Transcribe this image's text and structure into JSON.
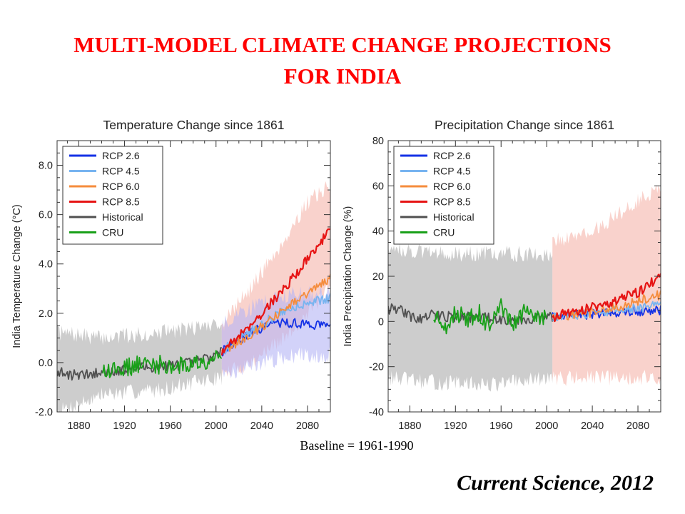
{
  "slide": {
    "title_line1": "MULTI-MODEL CLIMATE CHANGE PROJECTIONS",
    "title_line2": "FOR INDIA",
    "baseline_note": "Baseline = 1961-1990",
    "citation": "Current Science, 2012"
  },
  "colors": {
    "title": "#ff0000",
    "rcp26": "#1432e6",
    "rcp45": "#78b4f0",
    "rcp60": "#f58c3c",
    "rcp85": "#e61414",
    "historical": "#505050",
    "cru": "#19a019",
    "hist_band": "#c8c8c8",
    "rcp85_band": "#f5b4aa",
    "rcp26_band": "#b4b4f5"
  },
  "chart_data": [
    {
      "type": "line",
      "title": "Temperature Change since 1861",
      "xlabel": "",
      "ylabel": "India Temperature Change (°C)",
      "xlim": [
        1861,
        2100
      ],
      "ylim": [
        -2.0,
        9.0
      ],
      "xticks": [
        1880,
        1920,
        1960,
        2000,
        2040,
        2080
      ],
      "xtick_labels": [
        "1880",
        "1920",
        "1960",
        "2000",
        "2040",
        "2080"
      ],
      "yticks": [
        -2.0,
        0.0,
        2.0,
        4.0,
        6.0,
        8.0
      ],
      "ytick_labels": [
        "-2.0",
        "0.0",
        "2.0",
        "4.0",
        "6.0",
        "8.0"
      ],
      "grid": false,
      "legend_position": "top-left",
      "legend": [
        "RCP 2.6",
        "RCP 4.5",
        "RCP 6.0",
        "RCP 8.5",
        "Historical",
        "CRU"
      ],
      "series": [
        {
          "name": "Historical",
          "color": "#505050",
          "x": [
            1861,
            1875,
            1890,
            1905,
            1920,
            1935,
            1950,
            1965,
            1980,
            1990,
            2000,
            2005
          ],
          "y": [
            -0.4,
            -0.5,
            -0.5,
            -0.35,
            -0.3,
            -0.2,
            -0.15,
            -0.1,
            0.0,
            0.15,
            0.3,
            0.4
          ]
        },
        {
          "name": "CRU",
          "color": "#19a019",
          "x": [
            1901,
            1915,
            1930,
            1945,
            1960,
            1975,
            1990,
            2000,
            2005
          ],
          "y": [
            -0.2,
            -0.25,
            -0.1,
            -0.05,
            -0.15,
            -0.1,
            0.1,
            0.3,
            0.4
          ]
        },
        {
          "name": "RCP 2.6",
          "color": "#1432e6",
          "x": [
            2005,
            2020,
            2035,
            2050,
            2065,
            2080,
            2100
          ],
          "y": [
            0.45,
            0.9,
            1.3,
            1.6,
            1.6,
            1.55,
            1.5
          ]
        },
        {
          "name": "RCP 4.5",
          "color": "#78b4f0",
          "x": [
            2005,
            2020,
            2035,
            2050,
            2065,
            2080,
            2100
          ],
          "y": [
            0.45,
            0.95,
            1.4,
            1.85,
            2.2,
            2.45,
            2.6
          ]
        },
        {
          "name": "RCP 6.0",
          "color": "#f58c3c",
          "x": [
            2005,
            2020,
            2035,
            2050,
            2065,
            2080,
            2100
          ],
          "y": [
            0.45,
            0.85,
            1.3,
            1.8,
            2.3,
            2.8,
            3.4
          ]
        },
        {
          "name": "RCP 8.5",
          "color": "#e61414",
          "x": [
            2005,
            2020,
            2035,
            2050,
            2065,
            2080,
            2100
          ],
          "y": [
            0.45,
            1.1,
            1.75,
            2.5,
            3.3,
            4.2,
            5.4
          ]
        }
      ],
      "bands": [
        {
          "color": "#c8c8c8",
          "x": [
            1861,
            1900,
            1950,
            2005
          ],
          "low": [
            -2.0,
            -1.3,
            -1.1,
            -0.6
          ],
          "high": [
            1.2,
            1.0,
            1.2,
            1.6
          ]
        },
        {
          "color": "#f5b4aa",
          "x": [
            2005,
            2030,
            2060,
            2080,
            2100
          ],
          "low": [
            -0.5,
            0.0,
            1.0,
            2.0,
            3.0
          ],
          "high": [
            1.6,
            3.0,
            5.0,
            6.5,
            7.2
          ]
        },
        {
          "color": "#b4b4f5",
          "x": [
            2005,
            2040,
            2070,
            2100
          ],
          "low": [
            -0.5,
            0.0,
            0.3,
            0.3
          ],
          "high": [
            1.5,
            2.5,
            2.8,
            2.8
          ]
        }
      ]
    },
    {
      "type": "line",
      "title": "Precipitation Change since 1861",
      "xlabel": "",
      "ylabel": "India Precipitation Change (%)",
      "xlim": [
        1861,
        2100
      ],
      "ylim": [
        -40,
        80
      ],
      "xticks": [
        1880,
        1920,
        1960,
        2000,
        2040,
        2080
      ],
      "xtick_labels": [
        "1880",
        "1920",
        "1960",
        "2000",
        "2040",
        "2080"
      ],
      "yticks": [
        -40,
        -20,
        0,
        20,
        40,
        60,
        80
      ],
      "ytick_labels": [
        "-40",
        "-20",
        "0",
        "20",
        "40",
        "60",
        "80"
      ],
      "grid": false,
      "legend_position": "top-left",
      "legend": [
        "RCP 2.6",
        "RCP 4.5",
        "RCP 6.0",
        "RCP 8.5",
        "Historical",
        "CRU"
      ],
      "series": [
        {
          "name": "Historical",
          "color": "#505050",
          "x": [
            1861,
            1870,
            1880,
            1890,
            1900,
            1920,
            1940,
            1960,
            1980,
            2000,
            2005
          ],
          "y": [
            5,
            6,
            2,
            1,
            3,
            2,
            2,
            1,
            1,
            2,
            2
          ]
        },
        {
          "name": "CRU",
          "color": "#19a019",
          "x": [
            1901,
            1910,
            1920,
            1930,
            1940,
            1950,
            1960,
            1970,
            1980,
            1990,
            2000
          ],
          "y": [
            2,
            -3,
            5,
            0,
            4,
            -3,
            6,
            -2,
            4,
            1,
            3
          ]
        },
        {
          "name": "RCP 2.6",
          "color": "#1432e6",
          "x": [
            2005,
            2030,
            2060,
            2100
          ],
          "y": [
            2,
            3,
            4,
            5
          ]
        },
        {
          "name": "RCP 4.5",
          "color": "#78b4f0",
          "x": [
            2005,
            2030,
            2060,
            2100
          ],
          "y": [
            2,
            3,
            5,
            7
          ]
        },
        {
          "name": "RCP 6.0",
          "color": "#f58c3c",
          "x": [
            2005,
            2030,
            2060,
            2100
          ],
          "y": [
            2,
            3,
            6,
            12
          ]
        },
        {
          "name": "RCP 8.5",
          "color": "#e61414",
          "x": [
            2005,
            2030,
            2060,
            2080,
            2100
          ],
          "y": [
            2,
            5,
            9,
            13,
            20
          ]
        }
      ],
      "bands": [
        {
          "color": "#c8c8c8",
          "x": [
            1861,
            1900,
            1950,
            2005
          ],
          "low": [
            -25,
            -27,
            -28,
            -25
          ],
          "high": [
            33,
            30,
            30,
            30
          ]
        },
        {
          "color": "#f5b4aa",
          "x": [
            2005,
            2040,
            2070,
            2100
          ],
          "low": [
            -25,
            -25,
            -25,
            -25
          ],
          "high": [
            35,
            40,
            50,
            60
          ]
        }
      ]
    }
  ]
}
